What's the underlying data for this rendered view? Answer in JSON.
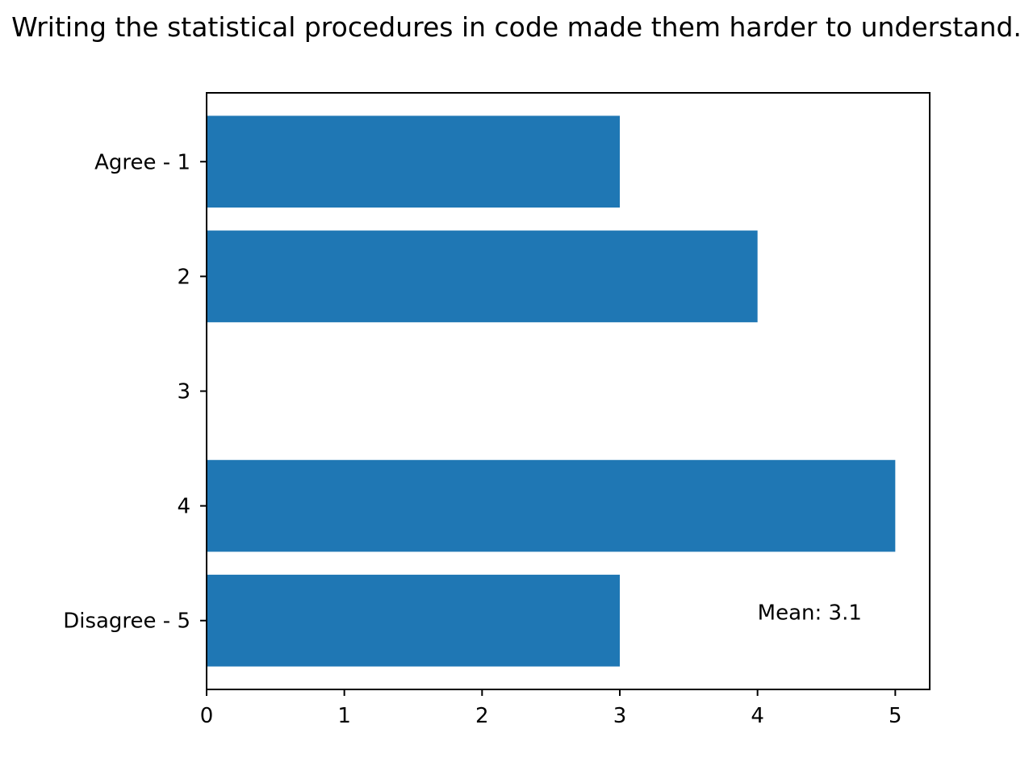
{
  "chart_data": {
    "type": "bar",
    "orientation": "horizontal",
    "title": "Writing the statistical procedures in code made them harder to understand.",
    "xlabel": "",
    "ylabel": "",
    "categories": [
      "Agree - 1",
      "2",
      "3",
      "4",
      "Disagree - 5"
    ],
    "values": [
      3,
      4,
      0,
      5,
      3
    ],
    "xlim": [
      0,
      5.25
    ],
    "x_ticks": [
      "0",
      "1",
      "2",
      "3",
      "4",
      "5"
    ],
    "grid": false,
    "legend": "none",
    "annotation": {
      "text": "Mean: 3.1",
      "x": 4,
      "y": "Disagree - 5"
    },
    "colors": {
      "bar": "#1f77b4",
      "axes": "#000000",
      "background": "#ffffff"
    }
  }
}
